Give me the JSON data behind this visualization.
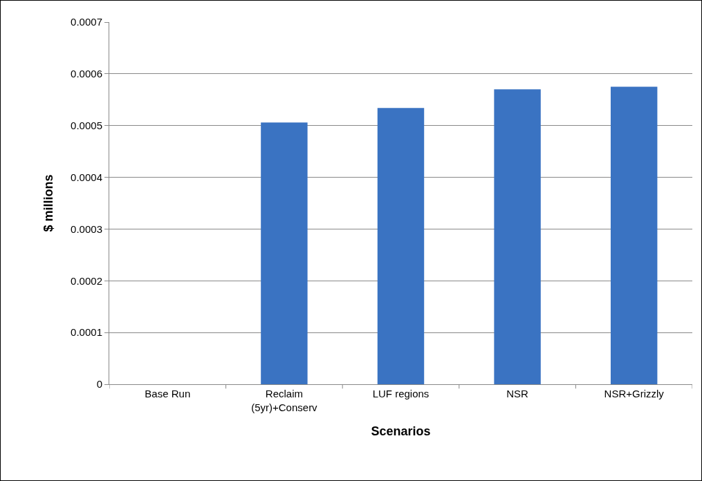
{
  "chart_data": {
    "type": "bar",
    "xlabel": "Scenarios",
    "ylabel": "$ millions",
    "categories": [
      "Base Run",
      "Reclaim (5yr)+Conserv",
      "LUF regions",
      "NSR",
      "NSR+Grizzly"
    ],
    "values": [
      0,
      0.000506,
      0.000534,
      0.00057,
      0.000575
    ],
    "color": "#3a73c2",
    "ylim": [
      0,
      0.0007
    ],
    "yticks": [
      0,
      0.0001,
      0.0002,
      0.0003,
      0.0004,
      0.0005,
      0.0006,
      0.0007
    ],
    "grid": "y"
  }
}
